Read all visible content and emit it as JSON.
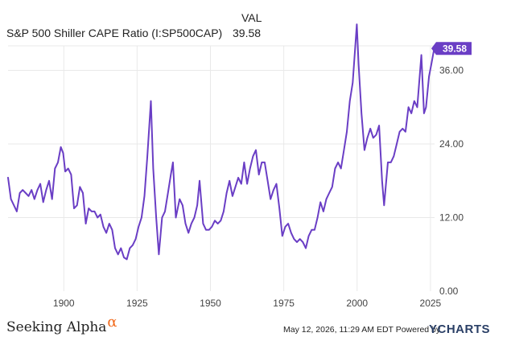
{
  "legend": {
    "column_header": "VAL",
    "series_name": "S&P 500 Shiller CAPE Ratio (I:SP500CAP)",
    "series_value": "39.58"
  },
  "footer": {
    "brand_text": "Seeking Alpha",
    "brand_symbol": "α",
    "timestamp": "May 12, 2026, 11:29 AM EDT Powered by",
    "ycharts_y": "Y",
    "ycharts_rest": "CHARTS"
  },
  "colors": {
    "series": "#6a3ec5",
    "grid": "#e9e9e9",
    "axis_text": "#444444",
    "brand_accent": "#f26b1d"
  },
  "chart_data": {
    "type": "line",
    "title": "",
    "xlabel": "",
    "ylabel": "",
    "xlim": [
      1881,
      2026.4
    ],
    "ylim": [
      0,
      40
    ],
    "x_ticks": [
      1900,
      1925,
      1950,
      1975,
      2000,
      2025
    ],
    "x_tick_labels": [
      "1900",
      "1925",
      "1950",
      "1975",
      "2000",
      "2025"
    ],
    "y_ticks": [
      0,
      12,
      24,
      36
    ],
    "y_tick_labels": [
      "0.00",
      "12.00",
      "24.00",
      "36.00"
    ],
    "grid": true,
    "last_value_label": "39.58",
    "series": [
      {
        "name": "S&P 500 Shiller CAPE Ratio (I:SP500CAP)",
        "x": [
          1881,
          1882,
          1883,
          1884,
          1885,
          1886,
          1887,
          1888,
          1889,
          1890,
          1891,
          1892,
          1893,
          1894,
          1895,
          1896,
          1897,
          1898,
          1899,
          1899.8,
          1900.5,
          1901.5,
          1902.5,
          1903.5,
          1904.5,
          1905.5,
          1906.5,
          1907.5,
          1908.5,
          1909.5,
          1910.5,
          1911.5,
          1912.5,
          1913.5,
          1914.5,
          1915.5,
          1916.5,
          1917.5,
          1918.5,
          1919.5,
          1920.5,
          1921.5,
          1922.5,
          1923.5,
          1924.5,
          1925.5,
          1926.5,
          1927.5,
          1928.5,
          1929.7,
          1930.5,
          1931.5,
          1932.4,
          1933.5,
          1934.5,
          1935.5,
          1936.5,
          1937.2,
          1938.2,
          1939.5,
          1940.5,
          1941.5,
          1942.5,
          1943.5,
          1944.5,
          1945.5,
          1946.3,
          1947.5,
          1948.5,
          1949.5,
          1950.5,
          1951.5,
          1952.5,
          1953.5,
          1954.5,
          1955.5,
          1956.5,
          1957.5,
          1958.5,
          1959.5,
          1960.5,
          1961.5,
          1962.5,
          1963.5,
          1964.5,
          1965.5,
          1966.5,
          1967.5,
          1968.5,
          1969.5,
          1970.5,
          1971.5,
          1972.5,
          1973.5,
          1974.5,
          1975.5,
          1976.5,
          1977.5,
          1978.5,
          1979.5,
          1980.5,
          1981.5,
          1982.5,
          1983.5,
          1984.5,
          1985.5,
          1986.5,
          1987.5,
          1988.5,
          1989.5,
          1990.5,
          1991.5,
          1992.5,
          1993.5,
          1994.5,
          1995.5,
          1996.5,
          1997.5,
          1998.5,
          1999.9,
          2000.5,
          2001.5,
          2002.5,
          2003.5,
          2004.5,
          2005.5,
          2006.5,
          2007.5,
          2008.5,
          2009.2,
          2010.5,
          2011.5,
          2012.5,
          2013.5,
          2014.5,
          2015.5,
          2016.5,
          2017.5,
          2018.5,
          2019.5,
          2020.5,
          2021.9,
          2022.8,
          2023.5,
          2024.5,
          2025.3,
          2026.3
        ],
        "values": [
          18.5,
          15,
          14,
          13,
          16,
          16.5,
          16,
          15.5,
          16.5,
          15,
          16.5,
          17.5,
          14.5,
          16.5,
          18,
          15,
          20,
          21,
          23.5,
          22.5,
          19.5,
          20,
          19,
          13.5,
          14,
          17,
          16,
          11,
          13.5,
          13,
          13,
          12,
          12.5,
          10.5,
          9.5,
          11,
          10,
          7,
          6,
          7,
          5.5,
          5.2,
          7,
          7.5,
          8.5,
          10.5,
          12,
          15.5,
          22,
          31,
          20,
          12,
          6,
          12,
          13,
          16,
          19,
          21,
          12,
          15,
          14,
          11,
          9.5,
          11,
          12,
          14,
          18,
          11,
          10,
          10,
          10.5,
          11.5,
          11,
          11.5,
          13,
          16,
          18,
          15.5,
          17,
          18.5,
          17.5,
          21,
          17.5,
          20,
          22,
          23,
          19,
          21,
          21,
          18,
          15,
          16.5,
          17.5,
          13.5,
          9,
          10.5,
          11,
          9.5,
          8.5,
          8,
          8.5,
          8,
          7,
          9,
          10,
          10,
          12,
          14.5,
          13,
          15,
          16,
          17,
          20,
          21,
          20,
          23,
          26,
          31,
          34,
          43.5,
          37,
          29,
          23,
          25,
          26.5,
          25,
          25.5,
          27,
          18,
          14,
          21,
          21,
          22,
          24,
          26,
          26.5,
          26,
          30,
          29,
          31,
          30,
          38.5,
          29,
          30,
          35,
          37,
          39.58
        ]
      }
    ]
  }
}
